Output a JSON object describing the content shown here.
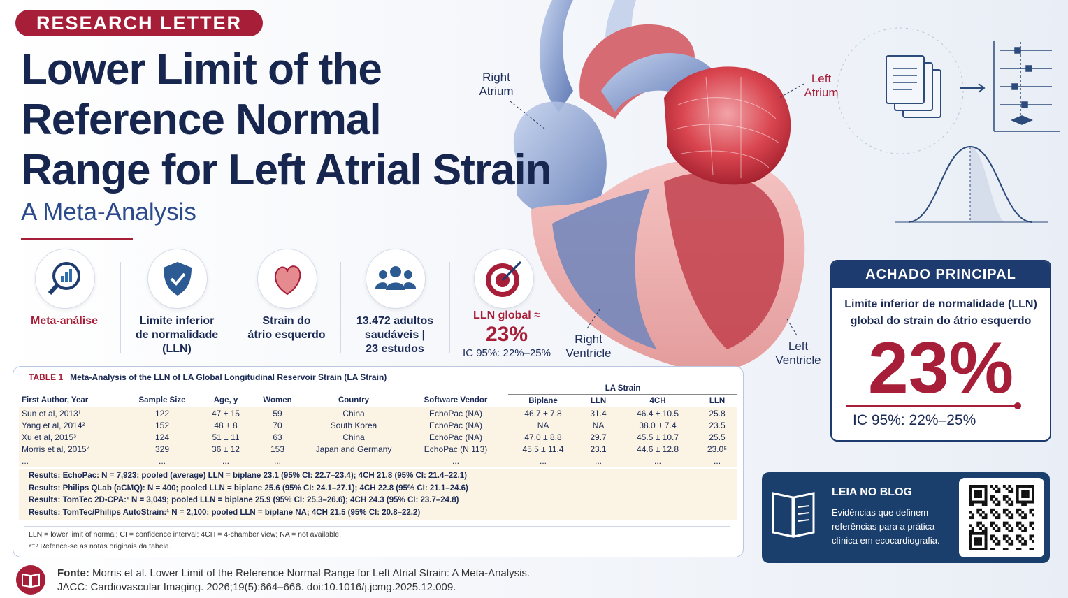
{
  "badge": "RESEARCH LETTER",
  "title_lines": [
    "Lower Limit of the",
    "Reference Normal",
    "Range for Left Atrial Strain"
  ],
  "subtitle": "A Meta-Analysis",
  "heart_labels": {
    "right_atrium": [
      "Right",
      "Atrium"
    ],
    "left_atrium": [
      "Left",
      "Atrium"
    ],
    "right_ventricle": [
      "Right",
      "Ventricle"
    ],
    "left_ventricle": [
      "Left",
      "Ventricle"
    ]
  },
  "highlights": [
    {
      "lines": [
        "Meta-análise"
      ]
    },
    {
      "lines": [
        "Limite inferior",
        "de normalidade",
        "(LLN)"
      ]
    },
    {
      "lines": [
        "Strain do",
        "átrio esquerdo"
      ]
    },
    {
      "lines": [
        "13.472 adultos",
        "saudáveis |",
        "23 estudos"
      ]
    },
    {
      "lines": [
        "LLN global ≈",
        "23%",
        "IC 95%: 22%–25%"
      ]
    }
  ],
  "table": {
    "label": "TABLE 1",
    "caption": "Meta-Analysis of the LLN of LA Global Longitudinal Reservoir Strain (LA Strain)",
    "group_header": "LA Strain",
    "columns": [
      "First Author, Year",
      "Sample Size",
      "Age, y",
      "Women",
      "Country",
      "Software Vendor",
      "Biplane",
      "LLN",
      "4CH",
      "LLN"
    ],
    "rows": [
      [
        "Sun et al, 2013¹",
        "122",
        "47 ± 15",
        "59",
        "China",
        "EchoPac (NA)",
        "46.7 ± 7.8",
        "31.4",
        "46.4 ± 10.5",
        "25.8"
      ],
      [
        "Yang et al, 2014²",
        "152",
        "48 ± 8",
        "70",
        "South Korea",
        "EchoPac (NA)",
        "NA",
        "NA",
        "38.0 ± 7.4",
        "23.5"
      ],
      [
        "Xu et al, 2015³",
        "124",
        "51 ± 11",
        "63",
        "China",
        "EchoPac (NA)",
        "47.0 ± 8.8",
        "29.7",
        "45.5 ± 10.7",
        "25.5"
      ],
      [
        "Morris et al, 2015⁴",
        "329",
        "36 ± 12",
        "153",
        "Japan and Germany",
        "EchoPac (N 113)",
        "45.5 ± 11.4",
        "23.1",
        "44.6 ± 12.8",
        "23.0⁵"
      ],
      [
        "...",
        "...",
        "...",
        "...",
        "",
        "...",
        "...",
        "...",
        "...",
        "..."
      ]
    ],
    "results": [
      "Results: EchoPac: N = 7,923; pooled (average) LLN = biplane 23.1 (95% CI: 22.7–23.4); 4CH 21.8 (95% CI: 21.4–22.1)",
      "Results: Philips QLab (aCMQ): N = 400; pooled LLN = biplane 25.6 (95% CI: 24.1–27.1); 4CH 22.8 (95% CI: 21.1–24.6)",
      "Results: TomTec 2D-CPA:¹ N = 3,049; pooled LLN = biplane 25.9 (95% CI: 25.3–26.6); 4CH 24.3 (95% CI: 23.7–24.8)",
      "Results: TomTec/Philips AutoStrain:¹ N = 2,100; pooled LLN = biplane NA; 4CH 21.5 (95% CI: 20.8–22.2)"
    ],
    "notes": [
      "LLN = lower limit of normal; CI = confidence interval; 4CH = 4-chamber view; NA = not available.",
      "ᵃ⁻ᵇ Refence-se as notas originais da tabela."
    ]
  },
  "key_finding": {
    "title": "ACHADO PRINCIPAL",
    "text_lines": [
      "Limite inferior de normalidade (LLN)",
      "global do strain do átrio esquerdo"
    ],
    "value": "23%",
    "ci": "IC 95%: 22%–25%"
  },
  "blog": {
    "title": "LEIA NO BLOG",
    "text_lines": [
      "Evidências que definem",
      "referências para a prática",
      "clínica em ecocardiografia."
    ]
  },
  "source": {
    "label": "Fonte:",
    "line1": "Morris et al. Lower Limit of the Reference Normal Range for Left Atrial Strain: A Meta-Analysis.",
    "line2": "JACC: Cardiovascular Imaging. 2026;19(5):664–666. doi:10.1016/j.jcmg.2025.12.009."
  }
}
